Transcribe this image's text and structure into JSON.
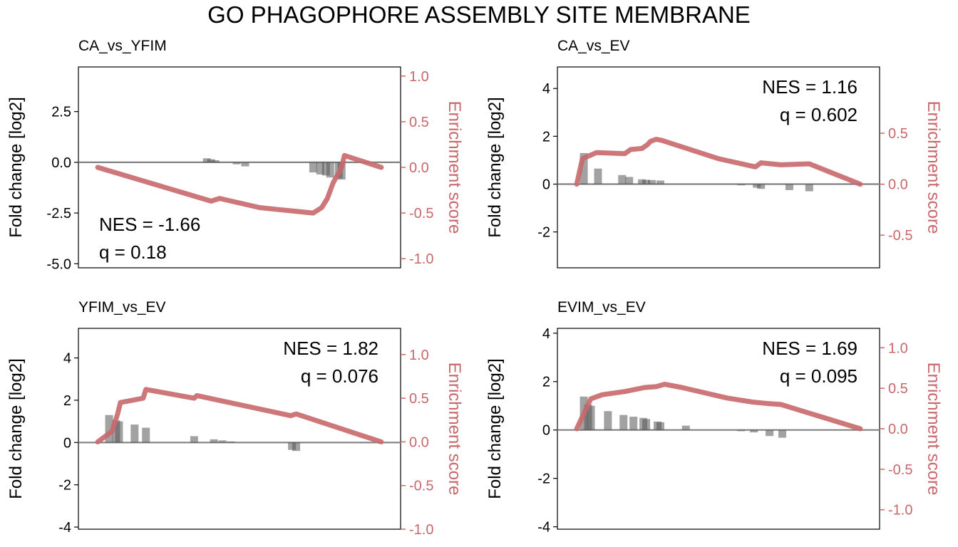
{
  "figure": {
    "title": "GO  PHAGOPHORE  ASSEMBLY  SITE  MEMBRANE",
    "colors": {
      "enrichment": "#C8686C",
      "bar": "#555555",
      "zero_line": "#808080",
      "text": "#000000"
    }
  },
  "chart_data": [
    {
      "type": "bar",
      "panel_title": "CA_vs_YFIM",
      "ylabel_left": "Fold change [log2]",
      "ylabel_right": "Enrichment score",
      "ylim_left": [
        -5.2,
        4.7
      ],
      "ylim_right": [
        -1.1,
        1.1
      ],
      "yticks_left": [
        "-5.0",
        "-2.5",
        "0.0",
        "2.5"
      ],
      "yticks_right": [
        "-1.0",
        "-0.5",
        "0.0",
        "0.5",
        "1.0"
      ],
      "x_range": [
        0,
        100
      ],
      "nes_label": "NES = -1.66",
      "q_label": "q = 0.18",
      "annotation_position": "bottom-left",
      "bars": [
        {
          "x": 38.5,
          "fc": 0.2
        },
        {
          "x": 40.0,
          "fc": 0.15
        },
        {
          "x": 41.5,
          "fc": 0.1
        },
        {
          "x": 49.0,
          "fc": -0.1
        },
        {
          "x": 52.0,
          "fc": -0.2
        },
        {
          "x": 76.0,
          "fc": -0.5
        },
        {
          "x": 78.5,
          "fc": -0.6
        },
        {
          "x": 80.5,
          "fc": -0.65
        },
        {
          "x": 82.0,
          "fc": -0.75
        },
        {
          "x": 85.0,
          "fc": -0.8
        },
        {
          "x": 86.0,
          "fc": -0.85
        }
      ],
      "enrichment": [
        {
          "x": 0,
          "y": 0.0
        },
        {
          "x": 40,
          "y": -0.37
        },
        {
          "x": 41,
          "y": -0.36
        },
        {
          "x": 43,
          "y": -0.34
        },
        {
          "x": 57,
          "y": -0.44
        },
        {
          "x": 60,
          "y": -0.45
        },
        {
          "x": 76,
          "y": -0.5
        },
        {
          "x": 79,
          "y": -0.44
        },
        {
          "x": 81,
          "y": -0.34
        },
        {
          "x": 83,
          "y": -0.17
        },
        {
          "x": 86,
          "y": 0.0
        },
        {
          "x": 87,
          "y": 0.13
        },
        {
          "x": 100,
          "y": 0.0
        }
      ]
    },
    {
      "type": "bar",
      "panel_title": "CA_vs_EV",
      "ylabel_left": "Fold change [log2]",
      "ylabel_right": "Enrichment score",
      "ylim_left": [
        -3.5,
        4.9
      ],
      "ylim_right": [
        -0.82,
        1.15
      ],
      "yticks_left": [
        "-2",
        "0",
        "2",
        "4"
      ],
      "yticks_right": [
        "-0.5",
        "0.0",
        "0.5"
      ],
      "x_range": [
        0,
        100
      ],
      "nes_label": "NES = 1.16",
      "q_label": "q = 0.602",
      "annotation_position": "top-right",
      "bars": [
        {
          "x": 2.5,
          "fc": 1.3
        },
        {
          "x": 7.5,
          "fc": 0.65
        },
        {
          "x": 16.0,
          "fc": 0.38
        },
        {
          "x": 18.5,
          "fc": 0.3
        },
        {
          "x": 23.0,
          "fc": 0.2
        },
        {
          "x": 24.5,
          "fc": 0.18
        },
        {
          "x": 26.5,
          "fc": 0.17
        },
        {
          "x": 29.5,
          "fc": 0.15
        },
        {
          "x": 58.0,
          "fc": -0.05
        },
        {
          "x": 63.5,
          "fc": -0.15
        },
        {
          "x": 65.0,
          "fc": -0.2
        },
        {
          "x": 75.0,
          "fc": -0.25
        },
        {
          "x": 82.0,
          "fc": -0.3
        }
      ],
      "enrichment": [
        {
          "x": 0,
          "y": 0.0
        },
        {
          "x": 2,
          "y": 0.25
        },
        {
          "x": 7,
          "y": 0.31
        },
        {
          "x": 17,
          "y": 0.3
        },
        {
          "x": 19,
          "y": 0.34
        },
        {
          "x": 23,
          "y": 0.35
        },
        {
          "x": 25,
          "y": 0.39
        },
        {
          "x": 26,
          "y": 0.42
        },
        {
          "x": 28,
          "y": 0.44
        },
        {
          "x": 30,
          "y": 0.43
        },
        {
          "x": 50,
          "y": 0.25
        },
        {
          "x": 63,
          "y": 0.17
        },
        {
          "x": 65,
          "y": 0.21
        },
        {
          "x": 72,
          "y": 0.19
        },
        {
          "x": 82,
          "y": 0.2
        },
        {
          "x": 100,
          "y": 0.0
        }
      ]
    },
    {
      "type": "bar",
      "panel_title": "YFIM_vs_EV",
      "ylabel_left": "Fold change [log2]",
      "ylabel_right": "Enrichment score",
      "ylim_left": [
        -4.1,
        5.4
      ],
      "ylim_right": [
        -1.0,
        1.3
      ],
      "yticks_left": [
        "-4",
        "-2",
        "0",
        "2",
        "4"
      ],
      "yticks_right": [
        "-1.0",
        "-0.5",
        "0.0",
        "0.5",
        "1.0"
      ],
      "x_range": [
        0,
        100
      ],
      "nes_label": "NES = 1.82",
      "q_label": "q = 0.076",
      "annotation_position": "top-right",
      "bars": [
        {
          "x": 4.0,
          "fc": 1.3
        },
        {
          "x": 6.5,
          "fc": 1.05
        },
        {
          "x": 7.5,
          "fc": 1.0
        },
        {
          "x": 13.0,
          "fc": 0.85
        },
        {
          "x": 17.0,
          "fc": 0.7
        },
        {
          "x": 34.0,
          "fc": 0.3
        },
        {
          "x": 41.0,
          "fc": 0.15
        },
        {
          "x": 44.0,
          "fc": 0.1
        },
        {
          "x": 47.0,
          "fc": 0.05
        },
        {
          "x": 68.5,
          "fc": -0.35
        },
        {
          "x": 70.0,
          "fc": -0.4
        }
      ],
      "enrichment": [
        {
          "x": 0,
          "y": 0.0
        },
        {
          "x": 5,
          "y": 0.12
        },
        {
          "x": 7,
          "y": 0.32
        },
        {
          "x": 8,
          "y": 0.45
        },
        {
          "x": 16,
          "y": 0.5
        },
        {
          "x": 17,
          "y": 0.6
        },
        {
          "x": 34,
          "y": 0.5
        },
        {
          "x": 35,
          "y": 0.53
        },
        {
          "x": 68,
          "y": 0.3
        },
        {
          "x": 70,
          "y": 0.32
        },
        {
          "x": 100,
          "y": 0.0
        }
      ]
    },
    {
      "type": "bar",
      "panel_title": "EVIM_vs_EV",
      "ylabel_left": "Fold change [log2]",
      "ylabel_right": "Enrichment score",
      "ylim_left": [
        -4.1,
        4.2
      ],
      "ylim_right": [
        -1.24,
        1.24
      ],
      "yticks_left": [
        "-4",
        "-2",
        "0",
        "2",
        "4"
      ],
      "yticks_right": [
        "-1.0",
        "-0.5",
        "0.0",
        "0.5",
        "1.0"
      ],
      "x_range": [
        0,
        100
      ],
      "nes_label": "NES = 1.69",
      "q_label": "q = 0.095",
      "annotation_position": "top-right",
      "bars": [
        {
          "x": 2.5,
          "fc": 1.38
        },
        {
          "x": 4.0,
          "fc": 1.05
        },
        {
          "x": 5.0,
          "fc": 1.0
        },
        {
          "x": 11.0,
          "fc": 0.78
        },
        {
          "x": 16.5,
          "fc": 0.62
        },
        {
          "x": 20.0,
          "fc": 0.55
        },
        {
          "x": 23.5,
          "fc": 0.5
        },
        {
          "x": 24.5,
          "fc": 0.45
        },
        {
          "x": 28.5,
          "fc": 0.35
        },
        {
          "x": 29.5,
          "fc": 0.32
        },
        {
          "x": 38.5,
          "fc": 0.18
        },
        {
          "x": 58.0,
          "fc": -0.05
        },
        {
          "x": 62.5,
          "fc": -0.1
        },
        {
          "x": 68.0,
          "fc": -0.25
        },
        {
          "x": 72.5,
          "fc": -0.32
        }
      ],
      "enrichment": [
        {
          "x": 0,
          "y": 0.0
        },
        {
          "x": 4,
          "y": 0.3
        },
        {
          "x": 5,
          "y": 0.37
        },
        {
          "x": 9,
          "y": 0.42
        },
        {
          "x": 17,
          "y": 0.46
        },
        {
          "x": 24,
          "y": 0.51
        },
        {
          "x": 28,
          "y": 0.52
        },
        {
          "x": 31,
          "y": 0.55
        },
        {
          "x": 37,
          "y": 0.51
        },
        {
          "x": 53,
          "y": 0.38
        },
        {
          "x": 62,
          "y": 0.33
        },
        {
          "x": 68,
          "y": 0.31
        },
        {
          "x": 72,
          "y": 0.3
        },
        {
          "x": 100,
          "y": 0.0
        }
      ]
    }
  ]
}
